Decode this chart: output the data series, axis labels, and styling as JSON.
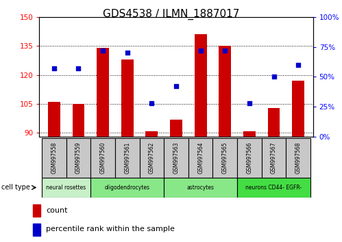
{
  "title": "GDS4538 / ILMN_1887017",
  "samples": [
    "GSM997558",
    "GSM997559",
    "GSM997560",
    "GSM997561",
    "GSM997562",
    "GSM997563",
    "GSM997564",
    "GSM997565",
    "GSM997566",
    "GSM997567",
    "GSM997568"
  ],
  "counts": [
    106,
    105,
    134,
    128,
    91,
    97,
    141,
    135,
    91,
    103,
    117
  ],
  "percentiles": [
    57,
    57,
    72,
    70,
    28,
    42,
    72,
    72,
    28,
    50,
    60
  ],
  "cell_types": [
    {
      "label": "neural rosettes",
      "start": 0,
      "end": 2
    },
    {
      "label": "oligodendrocytes",
      "start": 2,
      "end": 5
    },
    {
      "label": "astrocytes",
      "start": 5,
      "end": 8
    },
    {
      "label": "neurons CD44- EGFR-",
      "start": 8,
      "end": 11
    }
  ],
  "ct_colors": {
    "neural rosettes": "#c8f0c8",
    "oligodendrocytes": "#88e888",
    "astrocytes": "#88e888",
    "neurons CD44- EGFR-": "#44dd44"
  },
  "ylim_left": [
    88,
    150
  ],
  "ylim_right": [
    0,
    100
  ],
  "left_ticks": [
    90,
    105,
    120,
    135,
    150
  ],
  "right_ticks": [
    0,
    25,
    50,
    75,
    100
  ],
  "bar_color": "#cc0000",
  "dot_color": "#0000cc",
  "bar_width": 0.5,
  "bg_label": "#c8c8c8",
  "title_fontsize": 11
}
